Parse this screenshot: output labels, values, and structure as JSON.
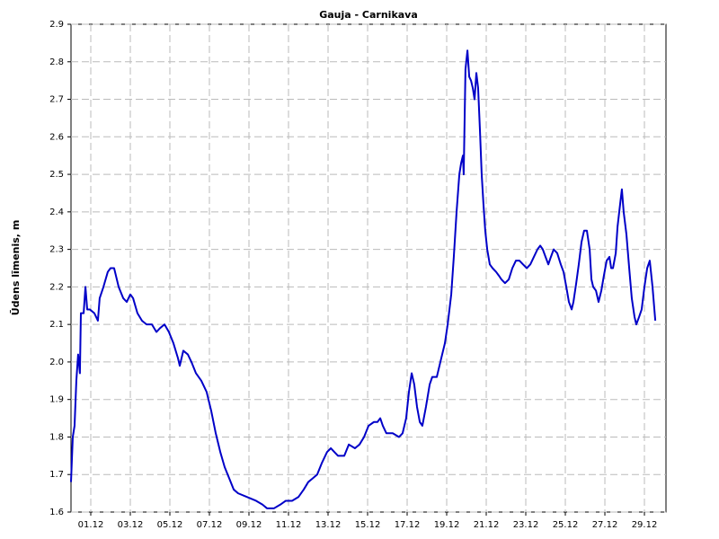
{
  "chart_data": {
    "type": "line",
    "title": "Gauja - Carnikava",
    "y_label": "Ūdens līmenis, m",
    "x": [
      0,
      0.09,
      0.18,
      0.27,
      0.36,
      0.45,
      0.5,
      0.64,
      0.73,
      0.82,
      0.95,
      1.18,
      1.36,
      1.45,
      1.64,
      1.86,
      2,
      2.18,
      2.41,
      2.64,
      2.82,
      3,
      3.14,
      3.36,
      3.59,
      3.82,
      4.09,
      4.32,
      4.5,
      4.73,
      4.95,
      5.18,
      5.41,
      5.5,
      5.68,
      5.91,
      6.09,
      6.32,
      6.59,
      6.86,
      7.09,
      7.32,
      7.55,
      7.77,
      8,
      8.23,
      8.45,
      8.91,
      9.36,
      9.68,
      9.91,
      10.27,
      10.59,
      10.86,
      11.18,
      11.5,
      11.77,
      12,
      12.23,
      12.45,
      12.68,
      12.95,
      13.14,
      13.32,
      13.5,
      13.82,
      14.05,
      14.36,
      14.59,
      14.82,
      15.05,
      15.32,
      15.5,
      15.64,
      15.77,
      15.95,
      16.27,
      16.59,
      16.77,
      16.95,
      17.09,
      17.23,
      17.36,
      17.5,
      17.64,
      17.77,
      17.95,
      18.14,
      18.27,
      18.5,
      18.68,
      18.91,
      19.05,
      19.23,
      19.36,
      19.5,
      19.64,
      19.73,
      19.82,
      19.86,
      19.95,
      20.05,
      20.14,
      20.23,
      20.32,
      20.41,
      20.5,
      20.59,
      20.68,
      20.77,
      20.86,
      20.95,
      21.05,
      21.18,
      21.32,
      21.5,
      21.64,
      21.77,
      21.95,
      22.14,
      22.32,
      22.5,
      22.68,
      22.86,
      23.05,
      23.23,
      23.41,
      23.59,
      23.73,
      23.86,
      24,
      24.14,
      24.27,
      24.41,
      24.59,
      24.77,
      24.91,
      25.05,
      25.18,
      25.32,
      25.41,
      25.55,
      25.68,
      25.82,
      25.95,
      26.09,
      26.23,
      26.32,
      26.41,
      26.55,
      26.68,
      26.82,
      26.95,
      27.09,
      27.23,
      27.32,
      27.41,
      27.55,
      27.64,
      27.77,
      27.86,
      27.95,
      28.09,
      28.23,
      28.36,
      28.5,
      28.59,
      28.73,
      28.86,
      29,
      29.14,
      29.27,
      29.41,
      29.55
    ],
    "series": [
      {
        "name": "Gauja - Carnikava",
        "color": "#0000c8",
        "values": [
          1.68,
          1.8,
          1.83,
          1.95,
          2.02,
          1.97,
          2.13,
          2.13,
          2.2,
          2.14,
          2.14,
          2.13,
          2.11,
          2.17,
          2.2,
          2.24,
          2.25,
          2.25,
          2.2,
          2.17,
          2.16,
          2.18,
          2.17,
          2.13,
          2.11,
          2.1,
          2.1,
          2.08,
          2.09,
          2.1,
          2.08,
          2.05,
          2.01,
          1.99,
          2.03,
          2.02,
          2,
          1.97,
          1.95,
          1.92,
          1.87,
          1.81,
          1.76,
          1.72,
          1.69,
          1.66,
          1.65,
          1.64,
          1.63,
          1.62,
          1.61,
          1.61,
          1.62,
          1.63,
          1.63,
          1.64,
          1.66,
          1.68,
          1.69,
          1.7,
          1.73,
          1.76,
          1.77,
          1.76,
          1.75,
          1.75,
          1.78,
          1.77,
          1.78,
          1.8,
          1.83,
          1.84,
          1.84,
          1.85,
          1.83,
          1.81,
          1.81,
          1.8,
          1.81,
          1.85,
          1.92,
          1.97,
          1.94,
          1.88,
          1.84,
          1.83,
          1.88,
          1.94,
          1.96,
          1.96,
          2,
          2.05,
          2.1,
          2.18,
          2.28,
          2.4,
          2.5,
          2.53,
          2.55,
          2.5,
          2.78,
          2.83,
          2.76,
          2.75,
          2.73,
          2.7,
          2.77,
          2.73,
          2.62,
          2.5,
          2.42,
          2.35,
          2.3,
          2.26,
          2.25,
          2.24,
          2.23,
          2.22,
          2.21,
          2.22,
          2.25,
          2.27,
          2.27,
          2.26,
          2.25,
          2.26,
          2.28,
          2.3,
          2.31,
          2.3,
          2.28,
          2.26,
          2.28,
          2.3,
          2.29,
          2.26,
          2.24,
          2.2,
          2.16,
          2.14,
          2.16,
          2.21,
          2.26,
          2.32,
          2.35,
          2.35,
          2.3,
          2.22,
          2.2,
          2.19,
          2.16,
          2.19,
          2.23,
          2.27,
          2.28,
          2.25,
          2.25,
          2.29,
          2.36,
          2.42,
          2.46,
          2.4,
          2.34,
          2.25,
          2.17,
          2.12,
          2.1,
          2.12,
          2.14,
          2.2,
          2.25,
          2.27,
          2.2,
          2.11
        ]
      }
    ],
    "xlim": [
      0,
      30.09
    ],
    "xticks": [
      {
        "value": 1,
        "label": "01.12"
      },
      {
        "value": 3,
        "label": "03.12"
      },
      {
        "value": 5,
        "label": "05.12"
      },
      {
        "value": 7,
        "label": "07.12"
      },
      {
        "value": 9,
        "label": "09.12"
      },
      {
        "value": 11,
        "label": "11.12"
      },
      {
        "value": 13,
        "label": "13.12"
      },
      {
        "value": 15,
        "label": "15.12"
      },
      {
        "value": 17,
        "label": "17.12"
      },
      {
        "value": 19,
        "label": "19.12"
      },
      {
        "value": 21,
        "label": "21.12"
      },
      {
        "value": 23,
        "label": "23.12"
      },
      {
        "value": 25,
        "label": "25.12"
      },
      {
        "value": 27,
        "label": "27.12"
      },
      {
        "value": 29,
        "label": "29.12"
      }
    ],
    "ylim": [
      1.6,
      2.9
    ],
    "yticks": [
      1.6,
      1.7,
      1.8,
      1.9,
      {
        "value": 2,
        "label": "2.0"
      },
      2.1,
      2.2,
      2.3,
      2.4,
      2.5,
      2.6,
      2.7,
      2.8,
      2.9
    ],
    "grid": true
  }
}
